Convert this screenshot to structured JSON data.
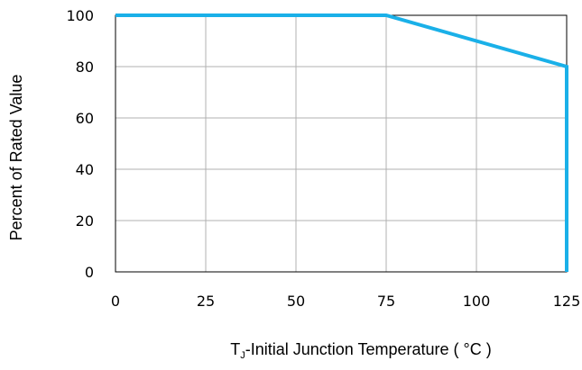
{
  "chart_data": {
    "type": "line",
    "title": "",
    "xlabel_main": "T",
    "xlabel_sub": "J",
    "xlabel_rest": "-Initial Junction Temperature ( °C )",
    "ylabel": "Percent of Rated Value",
    "xlim": [
      0,
      125
    ],
    "ylim": [
      0,
      100
    ],
    "xticks": [
      0,
      25,
      50,
      75,
      100,
      125
    ],
    "yticks": [
      0,
      20,
      40,
      60,
      80,
      100
    ],
    "grid": true,
    "legend": "none",
    "series": [
      {
        "color": "#1ab0e8",
        "x": [
          0,
          75,
          125,
          125
        ],
        "y": [
          100,
          100,
          80,
          0
        ]
      }
    ]
  }
}
